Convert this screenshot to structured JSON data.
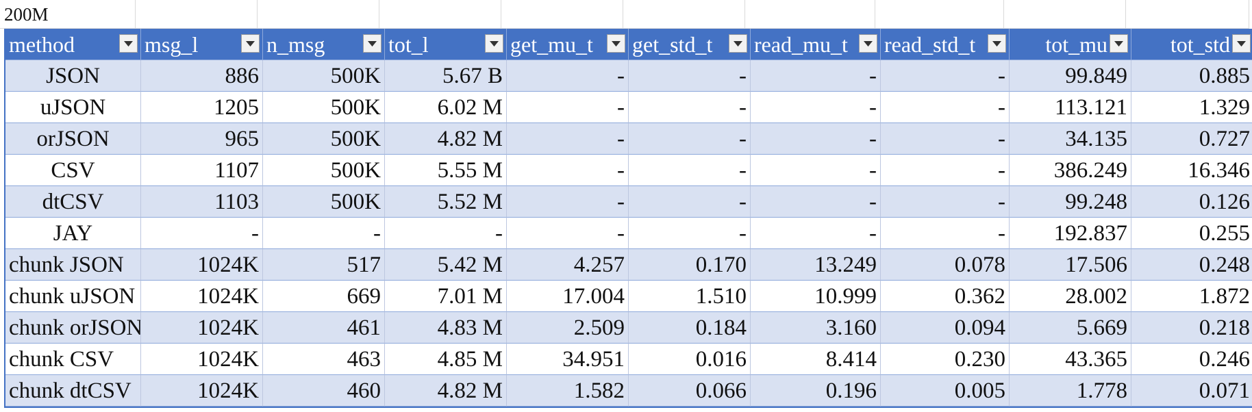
{
  "sheet": {
    "title_cell": "200M",
    "headers": [
      "method",
      "msg_l",
      "n_msg",
      "tot_l",
      "get_mu_t",
      "get_std_t",
      "read_mu_t",
      "read_std_t",
      "tot_mu",
      "tot_std"
    ],
    "rows": [
      [
        "JSON",
        "886",
        "500K",
        "5.67 B",
        "-",
        "-",
        "-",
        "-",
        "99.849",
        "0.885"
      ],
      [
        "uJSON",
        "1205",
        "500K",
        "6.02 M",
        "-",
        "-",
        "-",
        "-",
        "113.121",
        "1.329"
      ],
      [
        "orJSON",
        "965",
        "500K",
        "4.82 M",
        "-",
        "-",
        "-",
        "-",
        "34.135",
        "0.727"
      ],
      [
        "CSV",
        "1107",
        "500K",
        "5.55 M",
        "-",
        "-",
        "-",
        "-",
        "386.249",
        "16.346"
      ],
      [
        "dtCSV",
        "1103",
        "500K",
        "5.52 M",
        "-",
        "-",
        "-",
        "-",
        "99.248",
        "0.126"
      ],
      [
        "JAY",
        "-",
        "-",
        "-",
        "-",
        "-",
        "-",
        "-",
        "192.837",
        "0.255"
      ],
      [
        "chunk JSON",
        "1024K",
        "517",
        "5.42 M",
        "4.257",
        "0.170",
        "13.249",
        "0.078",
        "17.506",
        "0.248"
      ],
      [
        "chunk uJSON",
        "1024K",
        "669",
        "7.01 M",
        "17.004",
        "1.510",
        "10.999",
        "0.362",
        "28.002",
        "1.872"
      ],
      [
        "chunk orJSON",
        "1024K",
        "461",
        "4.83 M",
        "2.509",
        "0.184",
        "3.160",
        "0.094",
        "5.669",
        "0.218"
      ],
      [
        "chunk CSV",
        "1024K",
        "463",
        "4.85 M",
        "34.951",
        "0.016",
        "8.414",
        "0.230",
        "43.365",
        "0.246"
      ],
      [
        "chunk dtCSV",
        "1024K",
        "460",
        "4.82 M",
        "1.582",
        "0.066",
        "0.196",
        "0.005",
        "1.778",
        "0.071"
      ]
    ],
    "colors": {
      "header_bg": "#4472c4",
      "band_bg": "#d9e1f2",
      "gridline": "#d9d9d9"
    }
  }
}
